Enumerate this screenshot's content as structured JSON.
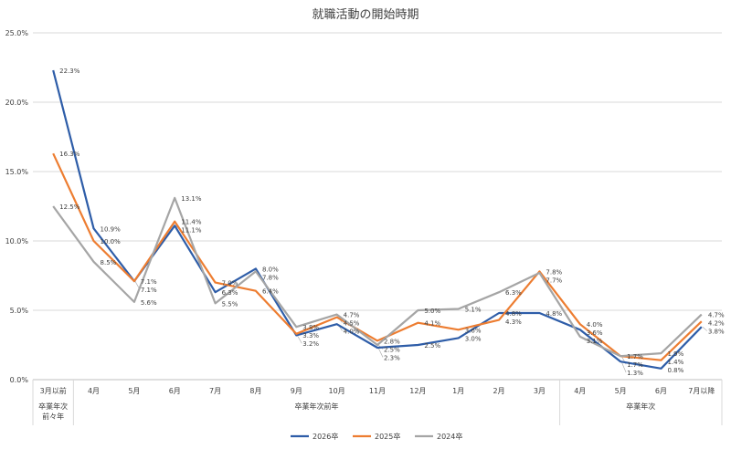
{
  "chart_data": {
    "type": "line",
    "title": "就職活動の開始時期",
    "categories": [
      "3月以前",
      "4月",
      "5月",
      "6月",
      "7月",
      "8月",
      "9月",
      "10月",
      "11月",
      "12月",
      "1月",
      "2月",
      "3月",
      "4月",
      "5月",
      "6月",
      "7月以降"
    ],
    "groups": [
      {
        "label": "卒業年次前々年",
        "lines": [
          "卒業年次",
          "前々年"
        ],
        "from": 0,
        "to": 0
      },
      {
        "label": "卒業年次前年",
        "lines": [
          "卒業年次前年"
        ],
        "from": 1,
        "to": 12
      },
      {
        "label": "卒業年次",
        "lines": [
          "卒業年次"
        ],
        "from": 13,
        "to": 16
      }
    ],
    "y_ticks": [
      "0.0%",
      "5.0%",
      "10.0%",
      "15.0%",
      "20.0%",
      "25.0%"
    ],
    "ylim": [
      0,
      25
    ],
    "grid": true,
    "legend_position": "bottom",
    "series": [
      {
        "name": "2026卒",
        "color": "#2E5DA8",
        "values": [
          22.3,
          10.9,
          7.1,
          11.1,
          6.3,
          8.0,
          3.2,
          4.0,
          2.3,
          2.5,
          3.0,
          4.8,
          4.8,
          3.6,
          1.3,
          0.8,
          3.8
        ],
        "labels": [
          "22.3%",
          "10.9%",
          "7.1%",
          "11.1%",
          "6.3%",
          "8.0%",
          "3.2%",
          "4.0%",
          "2.3%",
          "2.5%",
          "3.0%",
          "4.8%",
          "4.8%",
          "3.6%",
          "1.3%",
          "0.8%",
          "3.8%"
        ]
      },
      {
        "name": "2025卒",
        "color": "#ED7D31",
        "values": [
          16.3,
          10.0,
          7.1,
          11.4,
          7.0,
          6.4,
          3.3,
          4.5,
          2.8,
          4.1,
          3.6,
          4.3,
          7.8,
          4.0,
          1.7,
          1.4,
          4.2
        ],
        "labels": [
          "16.3%",
          "10.0%",
          "7.1%",
          "11.4%",
          "7.0%",
          "6.4%",
          "3.3%",
          "4.5%",
          "2.8%",
          "4.1%",
          "3.6%",
          "4.3%",
          "7.8%",
          "4.0%",
          "1.7%",
          "1.4%",
          "4.2%"
        ]
      },
      {
        "name": "2024卒",
        "color": "#A5A5A5",
        "values": [
          12.5,
          8.5,
          5.6,
          13.1,
          5.5,
          7.8,
          3.8,
          4.7,
          2.5,
          5.0,
          5.1,
          6.3,
          7.7,
          3.1,
          1.7,
          1.9,
          4.7
        ],
        "labels": [
          "12.5%",
          "8.5%",
          "5.6%",
          "13.1%",
          "5.5%",
          "7.8%",
          "3.8%",
          "4.7%",
          "2.5%",
          "5.0%",
          "5.1%",
          "6.3%",
          "7.7%",
          "3.1%",
          "1.7%",
          "1.9%",
          "4.7%"
        ]
      }
    ]
  }
}
